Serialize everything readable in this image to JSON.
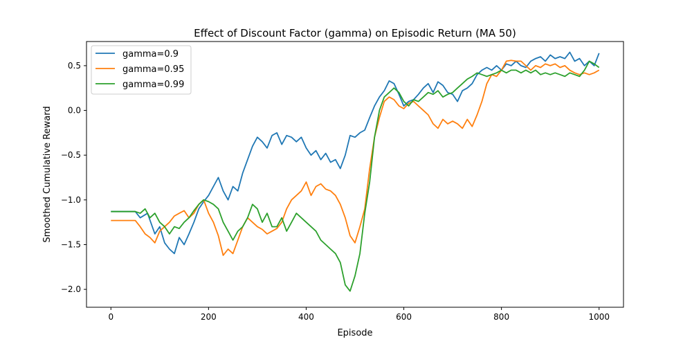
{
  "chart_data": {
    "type": "line",
    "title": "Effect of Discount Factor (gamma) on Episodic Return (MA 50)",
    "xlabel": "Episode",
    "ylabel": "Smoothed Cumulative Reward",
    "xlim": [
      -50,
      1050
    ],
    "ylim": [
      -2.2,
      0.77
    ],
    "xticks": [
      0,
      200,
      400,
      600,
      800,
      1000
    ],
    "yticks": [
      -2.0,
      -1.5,
      -1.0,
      -0.5,
      0.0,
      0.5
    ],
    "xtick_labels": [
      "0",
      "200",
      "400",
      "600",
      "800",
      "1000"
    ],
    "ytick_labels": [
      "−2.0",
      "−1.5",
      "−1.0",
      "−0.5",
      "0.0",
      "0.5"
    ],
    "grid": false,
    "legend_position": "top-left",
    "series": [
      {
        "name": "gamma=0.9",
        "color": "#1f77b4",
        "points": [
          [
            0,
            -1.13
          ],
          [
            50,
            -1.13
          ],
          [
            60,
            -1.2
          ],
          [
            75,
            -1.15
          ],
          [
            90,
            -1.38
          ],
          [
            100,
            -1.3
          ],
          [
            110,
            -1.48
          ],
          [
            120,
            -1.55
          ],
          [
            130,
            -1.6
          ],
          [
            140,
            -1.42
          ],
          [
            150,
            -1.5
          ],
          [
            160,
            -1.38
          ],
          [
            170,
            -1.25
          ],
          [
            180,
            -1.1
          ],
          [
            190,
            -1.02
          ],
          [
            200,
            -0.95
          ],
          [
            210,
            -0.85
          ],
          [
            220,
            -0.75
          ],
          [
            230,
            -0.9
          ],
          [
            240,
            -1.0
          ],
          [
            250,
            -0.85
          ],
          [
            260,
            -0.9
          ],
          [
            270,
            -0.7
          ],
          [
            280,
            -0.55
          ],
          [
            290,
            -0.4
          ],
          [
            300,
            -0.3
          ],
          [
            310,
            -0.35
          ],
          [
            320,
            -0.42
          ],
          [
            330,
            -0.28
          ],
          [
            340,
            -0.25
          ],
          [
            350,
            -0.38
          ],
          [
            360,
            -0.28
          ],
          [
            370,
            -0.3
          ],
          [
            380,
            -0.35
          ],
          [
            390,
            -0.3
          ],
          [
            400,
            -0.42
          ],
          [
            410,
            -0.5
          ],
          [
            420,
            -0.45
          ],
          [
            430,
            -0.55
          ],
          [
            440,
            -0.48
          ],
          [
            450,
            -0.58
          ],
          [
            460,
            -0.55
          ],
          [
            470,
            -0.65
          ],
          [
            480,
            -0.5
          ],
          [
            490,
            -0.28
          ],
          [
            500,
            -0.3
          ],
          [
            510,
            -0.25
          ],
          [
            520,
            -0.22
          ],
          [
            530,
            -0.08
          ],
          [
            540,
            0.05
          ],
          [
            550,
            0.15
          ],
          [
            560,
            0.22
          ],
          [
            570,
            0.33
          ],
          [
            580,
            0.3
          ],
          [
            590,
            0.18
          ],
          [
            600,
            0.05
          ],
          [
            610,
            0.1
          ],
          [
            620,
            0.12
          ],
          [
            630,
            0.18
          ],
          [
            640,
            0.25
          ],
          [
            650,
            0.3
          ],
          [
            660,
            0.2
          ],
          [
            670,
            0.32
          ],
          [
            680,
            0.28
          ],
          [
            690,
            0.2
          ],
          [
            700,
            0.18
          ],
          [
            710,
            0.1
          ],
          [
            720,
            0.22
          ],
          [
            730,
            0.25
          ],
          [
            740,
            0.3
          ],
          [
            750,
            0.4
          ],
          [
            760,
            0.45
          ],
          [
            770,
            0.48
          ],
          [
            780,
            0.45
          ],
          [
            790,
            0.5
          ],
          [
            800,
            0.45
          ],
          [
            810,
            0.52
          ],
          [
            820,
            0.5
          ],
          [
            830,
            0.55
          ],
          [
            840,
            0.5
          ],
          [
            850,
            0.48
          ],
          [
            860,
            0.55
          ],
          [
            870,
            0.58
          ],
          [
            880,
            0.6
          ],
          [
            890,
            0.55
          ],
          [
            900,
            0.62
          ],
          [
            910,
            0.58
          ],
          [
            920,
            0.6
          ],
          [
            930,
            0.58
          ],
          [
            940,
            0.65
          ],
          [
            950,
            0.55
          ],
          [
            960,
            0.58
          ],
          [
            970,
            0.5
          ],
          [
            980,
            0.55
          ],
          [
            990,
            0.5
          ],
          [
            1000,
            0.64
          ]
        ]
      },
      {
        "name": "gamma=0.95",
        "color": "#ff7f0e",
        "points": [
          [
            0,
            -1.23
          ],
          [
            50,
            -1.23
          ],
          [
            60,
            -1.3
          ],
          [
            70,
            -1.38
          ],
          [
            80,
            -1.42
          ],
          [
            90,
            -1.48
          ],
          [
            100,
            -1.35
          ],
          [
            110,
            -1.3
          ],
          [
            120,
            -1.25
          ],
          [
            130,
            -1.18
          ],
          [
            140,
            -1.15
          ],
          [
            150,
            -1.12
          ],
          [
            160,
            -1.2
          ],
          [
            170,
            -1.15
          ],
          [
            180,
            -1.05
          ],
          [
            190,
            -1.0
          ],
          [
            200,
            -1.15
          ],
          [
            210,
            -1.25
          ],
          [
            220,
            -1.4
          ],
          [
            230,
            -1.62
          ],
          [
            240,
            -1.55
          ],
          [
            250,
            -1.6
          ],
          [
            260,
            -1.45
          ],
          [
            270,
            -1.3
          ],
          [
            280,
            -1.2
          ],
          [
            290,
            -1.25
          ],
          [
            300,
            -1.3
          ],
          [
            310,
            -1.33
          ],
          [
            320,
            -1.38
          ],
          [
            330,
            -1.35
          ],
          [
            340,
            -1.32
          ],
          [
            350,
            -1.25
          ],
          [
            360,
            -1.1
          ],
          [
            370,
            -1.0
          ],
          [
            380,
            -0.95
          ],
          [
            390,
            -0.9
          ],
          [
            400,
            -0.8
          ],
          [
            410,
            -0.95
          ],
          [
            420,
            -0.85
          ],
          [
            430,
            -0.82
          ],
          [
            440,
            -0.88
          ],
          [
            450,
            -0.9
          ],
          [
            460,
            -0.95
          ],
          [
            470,
            -1.05
          ],
          [
            480,
            -1.2
          ],
          [
            490,
            -1.4
          ],
          [
            500,
            -1.48
          ],
          [
            510,
            -1.3
          ],
          [
            520,
            -1.1
          ],
          [
            530,
            -0.65
          ],
          [
            540,
            -0.3
          ],
          [
            550,
            -0.08
          ],
          [
            560,
            0.1
          ],
          [
            570,
            0.15
          ],
          [
            580,
            0.12
          ],
          [
            590,
            0.05
          ],
          [
            600,
            0.02
          ],
          [
            610,
            0.08
          ],
          [
            620,
            0.1
          ],
          [
            630,
            0.05
          ],
          [
            640,
            0.0
          ],
          [
            650,
            -0.05
          ],
          [
            660,
            -0.15
          ],
          [
            670,
            -0.2
          ],
          [
            680,
            -0.1
          ],
          [
            690,
            -0.15
          ],
          [
            700,
            -0.12
          ],
          [
            710,
            -0.15
          ],
          [
            720,
            -0.2
          ],
          [
            730,
            -0.1
          ],
          [
            740,
            -0.18
          ],
          [
            750,
            -0.05
          ],
          [
            760,
            0.1
          ],
          [
            770,
            0.3
          ],
          [
            780,
            0.4
          ],
          [
            790,
            0.38
          ],
          [
            800,
            0.45
          ],
          [
            810,
            0.55
          ],
          [
            820,
            0.56
          ],
          [
            830,
            0.55
          ],
          [
            840,
            0.55
          ],
          [
            850,
            0.5
          ],
          [
            860,
            0.45
          ],
          [
            870,
            0.5
          ],
          [
            880,
            0.48
          ],
          [
            890,
            0.52
          ],
          [
            900,
            0.5
          ],
          [
            910,
            0.52
          ],
          [
            920,
            0.48
          ],
          [
            930,
            0.5
          ],
          [
            940,
            0.45
          ],
          [
            950,
            0.42
          ],
          [
            960,
            0.4
          ],
          [
            970,
            0.42
          ],
          [
            980,
            0.4
          ],
          [
            990,
            0.42
          ],
          [
            1000,
            0.45
          ]
        ]
      },
      {
        "name": "gamma=0.99",
        "color": "#2ca02c",
        "points": [
          [
            0,
            -1.13
          ],
          [
            50,
            -1.13
          ],
          [
            60,
            -1.15
          ],
          [
            70,
            -1.1
          ],
          [
            80,
            -1.2
          ],
          [
            90,
            -1.15
          ],
          [
            100,
            -1.25
          ],
          [
            110,
            -1.3
          ],
          [
            120,
            -1.38
          ],
          [
            130,
            -1.3
          ],
          [
            140,
            -1.32
          ],
          [
            150,
            -1.25
          ],
          [
            160,
            -1.2
          ],
          [
            170,
            -1.12
          ],
          [
            180,
            -1.05
          ],
          [
            190,
            -1.0
          ],
          [
            200,
            -1.02
          ],
          [
            210,
            -1.05
          ],
          [
            220,
            -1.1
          ],
          [
            230,
            -1.25
          ],
          [
            240,
            -1.35
          ],
          [
            250,
            -1.45
          ],
          [
            260,
            -1.35
          ],
          [
            270,
            -1.3
          ],
          [
            280,
            -1.2
          ],
          [
            290,
            -1.05
          ],
          [
            300,
            -1.1
          ],
          [
            310,
            -1.25
          ],
          [
            320,
            -1.15
          ],
          [
            330,
            -1.3
          ],
          [
            340,
            -1.3
          ],
          [
            350,
            -1.2
          ],
          [
            360,
            -1.35
          ],
          [
            370,
            -1.25
          ],
          [
            380,
            -1.15
          ],
          [
            390,
            -1.2
          ],
          [
            400,
            -1.25
          ],
          [
            410,
            -1.3
          ],
          [
            420,
            -1.35
          ],
          [
            430,
            -1.45
          ],
          [
            440,
            -1.5
          ],
          [
            450,
            -1.55
          ],
          [
            460,
            -1.6
          ],
          [
            470,
            -1.7
          ],
          [
            480,
            -1.95
          ],
          [
            490,
            -2.02
          ],
          [
            500,
            -1.85
          ],
          [
            510,
            -1.6
          ],
          [
            520,
            -1.15
          ],
          [
            530,
            -0.8
          ],
          [
            540,
            -0.3
          ],
          [
            550,
            0.0
          ],
          [
            560,
            0.15
          ],
          [
            570,
            0.2
          ],
          [
            580,
            0.25
          ],
          [
            590,
            0.2
          ],
          [
            600,
            0.1
          ],
          [
            610,
            0.05
          ],
          [
            620,
            0.12
          ],
          [
            630,
            0.1
          ],
          [
            640,
            0.15
          ],
          [
            650,
            0.2
          ],
          [
            660,
            0.18
          ],
          [
            670,
            0.22
          ],
          [
            680,
            0.15
          ],
          [
            690,
            0.18
          ],
          [
            700,
            0.2
          ],
          [
            710,
            0.25
          ],
          [
            720,
            0.3
          ],
          [
            730,
            0.35
          ],
          [
            740,
            0.38
          ],
          [
            750,
            0.42
          ],
          [
            760,
            0.4
          ],
          [
            770,
            0.38
          ],
          [
            780,
            0.4
          ],
          [
            790,
            0.42
          ],
          [
            800,
            0.45
          ],
          [
            810,
            0.42
          ],
          [
            820,
            0.45
          ],
          [
            830,
            0.45
          ],
          [
            840,
            0.42
          ],
          [
            850,
            0.45
          ],
          [
            860,
            0.42
          ],
          [
            870,
            0.45
          ],
          [
            880,
            0.4
          ],
          [
            890,
            0.42
          ],
          [
            900,
            0.4
          ],
          [
            910,
            0.42
          ],
          [
            920,
            0.4
          ],
          [
            930,
            0.38
          ],
          [
            940,
            0.42
          ],
          [
            950,
            0.4
          ],
          [
            960,
            0.38
          ],
          [
            970,
            0.45
          ],
          [
            980,
            0.55
          ],
          [
            990,
            0.52
          ],
          [
            1000,
            0.48
          ]
        ]
      }
    ]
  }
}
